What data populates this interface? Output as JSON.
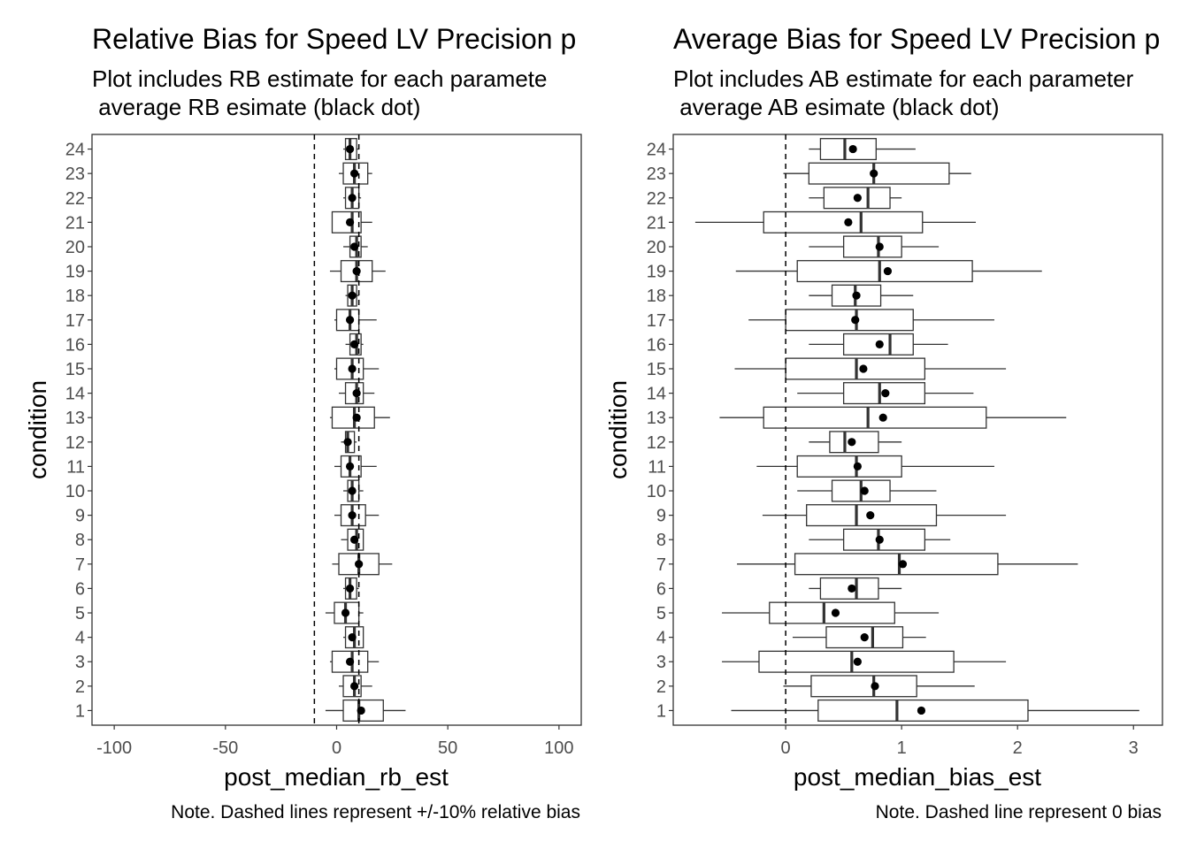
{
  "chart_data": [
    {
      "type": "box",
      "title": "Relative Bias for Speed LV Precision p",
      "subtitle_lines": [
        "Plot includes RB estimate for each paramete",
        " average RB esimate (black dot)"
      ],
      "xlabel": "post_median_rb_est",
      "ylabel": "condition",
      "caption": "Note. Dashed lines represent +/-10% relative bias",
      "xlim": [
        -110,
        110
      ],
      "xticks": [
        -100,
        -50,
        0,
        50,
        100
      ],
      "xtick_labels": [
        "-100",
        "-50",
        "0",
        "50",
        "100"
      ],
      "reference_lines": [
        -10,
        10
      ],
      "categories": [
        "1",
        "2",
        "3",
        "4",
        "5",
        "6",
        "7",
        "8",
        "9",
        "10",
        "11",
        "12",
        "13",
        "14",
        "15",
        "16",
        "17",
        "18",
        "19",
        "20",
        "21",
        "22",
        "23",
        "24"
      ],
      "boxes": [
        {
          "lo": -5,
          "q1": 3,
          "med": 10,
          "q3": 21,
          "hi": 31,
          "mean": 11
        },
        {
          "lo": 1,
          "q1": 3,
          "med": 8,
          "q3": 11,
          "hi": 16,
          "mean": 8
        },
        {
          "lo": -3,
          "q1": -2,
          "med": 7,
          "q3": 14,
          "hi": 19,
          "mean": 6
        },
        {
          "lo": 3,
          "q1": 4,
          "med": 8,
          "q3": 12,
          "hi": 12,
          "mean": 7
        },
        {
          "lo": -5,
          "q1": -1,
          "med": 4,
          "q3": 10,
          "hi": 12,
          "mean": 4
        },
        {
          "lo": 3,
          "q1": 4,
          "med": 6,
          "q3": 9,
          "hi": 10,
          "mean": 6
        },
        {
          "lo": -2,
          "q1": 1,
          "med": 10,
          "q3": 19,
          "hi": 25,
          "mean": 10
        },
        {
          "lo": 2,
          "q1": 5,
          "med": 9,
          "q3": 12,
          "hi": 12,
          "mean": 8
        },
        {
          "lo": -1,
          "q1": 2,
          "med": 7,
          "q3": 13,
          "hi": 19,
          "mean": 7
        },
        {
          "lo": 3,
          "q1": 5,
          "med": 7,
          "q3": 10,
          "hi": 12,
          "mean": 7
        },
        {
          "lo": -1,
          "q1": 2,
          "med": 6,
          "q3": 11,
          "hi": 18,
          "mean": 6
        },
        {
          "lo": 2,
          "q1": 4,
          "med": 5,
          "q3": 8,
          "hi": 9,
          "mean": 5
        },
        {
          "lo": -3,
          "q1": -2,
          "med": 8,
          "q3": 17,
          "hi": 24,
          "mean": 9
        },
        {
          "lo": 1,
          "q1": 4,
          "med": 9,
          "q3": 12,
          "hi": 17,
          "mean": 9
        },
        {
          "lo": -1,
          "q1": 0,
          "med": 7,
          "q3": 12,
          "hi": 19,
          "mean": 7
        },
        {
          "lo": 4,
          "q1": 6,
          "med": 9,
          "q3": 11,
          "hi": 12,
          "mean": 8
        },
        {
          "lo": -1,
          "q1": 0,
          "med": 6,
          "q3": 10,
          "hi": 18,
          "mean": 6
        },
        {
          "lo": 4,
          "q1": 5,
          "med": 7,
          "q3": 9,
          "hi": 10,
          "mean": 7
        },
        {
          "lo": -3,
          "q1": 2,
          "med": 9,
          "q3": 16,
          "hi": 22,
          "mean": 9
        },
        {
          "lo": 3,
          "q1": 6,
          "med": 9,
          "q3": 11,
          "hi": 14,
          "mean": 8
        },
        {
          "lo": -2,
          "q1": -2,
          "med": 7,
          "q3": 11,
          "hi": 16,
          "mean": 6
        },
        {
          "lo": 3,
          "q1": 4,
          "med": 7,
          "q3": 10,
          "hi": 11,
          "mean": 7
        },
        {
          "lo": 1,
          "q1": 3,
          "med": 8,
          "q3": 14,
          "hi": 16,
          "mean": 8
        },
        {
          "lo": 3,
          "q1": 4,
          "med": 6,
          "q3": 9,
          "hi": 10,
          "mean": 6
        }
      ],
      "grid": false
    },
    {
      "type": "box",
      "title": "Average Bias for Speed LV Precision p",
      "subtitle_lines": [
        "Plot includes AB estimate for each parameter",
        " average AB esimate (black dot)"
      ],
      "xlabel": "post_median_bias_est",
      "ylabel": "condition",
      "caption": "Note. Dashed line represent 0 bias",
      "xlim": [
        -0.97,
        3.25
      ],
      "xticks": [
        0,
        1,
        2,
        3
      ],
      "xtick_labels": [
        "0",
        "1",
        "2",
        "3"
      ],
      "reference_lines": [
        0
      ],
      "categories": [
        "1",
        "2",
        "3",
        "4",
        "5",
        "6",
        "7",
        "8",
        "9",
        "10",
        "11",
        "12",
        "13",
        "14",
        "15",
        "16",
        "17",
        "18",
        "19",
        "20",
        "21",
        "22",
        "23",
        "24"
      ],
      "boxes": [
        {
          "lo": -0.47,
          "q1": 0.28,
          "med": 0.96,
          "q3": 2.09,
          "hi": 3.05,
          "mean": 1.17
        },
        {
          "lo": -0.02,
          "q1": 0.22,
          "med": 0.76,
          "q3": 1.13,
          "hi": 1.63,
          "mean": 0.77
        },
        {
          "lo": -0.55,
          "q1": -0.23,
          "med": 0.57,
          "q3": 1.45,
          "hi": 1.9,
          "mean": 0.62
        },
        {
          "lo": 0.06,
          "q1": 0.35,
          "med": 0.75,
          "q3": 1.01,
          "hi": 1.21,
          "mean": 0.68
        },
        {
          "lo": -0.55,
          "q1": -0.14,
          "med": 0.33,
          "q3": 0.94,
          "hi": 1.32,
          "mean": 0.43
        },
        {
          "lo": 0.2,
          "q1": 0.3,
          "med": 0.61,
          "q3": 0.8,
          "hi": 1.0,
          "mean": 0.57
        },
        {
          "lo": -0.42,
          "q1": 0.08,
          "med": 0.98,
          "q3": 1.83,
          "hi": 2.52,
          "mean": 1.01
        },
        {
          "lo": 0.2,
          "q1": 0.5,
          "med": 0.8,
          "q3": 1.2,
          "hi": 1.42,
          "mean": 0.81
        },
        {
          "lo": -0.2,
          "q1": 0.18,
          "med": 0.61,
          "q3": 1.3,
          "hi": 1.9,
          "mean": 0.73
        },
        {
          "lo": 0.1,
          "q1": 0.4,
          "med": 0.65,
          "q3": 0.9,
          "hi": 1.3,
          "mean": 0.68
        },
        {
          "lo": -0.25,
          "q1": 0.1,
          "med": 0.61,
          "q3": 1.0,
          "hi": 1.8,
          "mean": 0.62
        },
        {
          "lo": 0.2,
          "q1": 0.38,
          "med": 0.51,
          "q3": 0.8,
          "hi": 1.0,
          "mean": 0.57
        },
        {
          "lo": -0.57,
          "q1": -0.19,
          "med": 0.71,
          "q3": 1.73,
          "hi": 2.42,
          "mean": 0.84
        },
        {
          "lo": 0.1,
          "q1": 0.5,
          "med": 0.81,
          "q3": 1.2,
          "hi": 1.62,
          "mean": 0.86
        },
        {
          "lo": -0.44,
          "q1": 0.0,
          "med": 0.61,
          "q3": 1.2,
          "hi": 1.9,
          "mean": 0.67
        },
        {
          "lo": 0.2,
          "q1": 0.5,
          "med": 0.9,
          "q3": 1.1,
          "hi": 1.4,
          "mean": 0.81
        },
        {
          "lo": -0.32,
          "q1": 0.0,
          "med": 0.61,
          "q3": 1.1,
          "hi": 1.8,
          "mean": 0.6
        },
        {
          "lo": 0.2,
          "q1": 0.4,
          "med": 0.6,
          "q3": 0.82,
          "hi": 1.1,
          "mean": 0.61
        },
        {
          "lo": -0.43,
          "q1": 0.1,
          "med": 0.81,
          "q3": 1.61,
          "hi": 2.21,
          "mean": 0.88
        },
        {
          "lo": 0.2,
          "q1": 0.5,
          "med": 0.8,
          "q3": 1.0,
          "hi": 1.32,
          "mean": 0.81
        },
        {
          "lo": -0.78,
          "q1": -0.19,
          "med": 0.65,
          "q3": 1.18,
          "hi": 1.64,
          "mean": 0.54
        },
        {
          "lo": 0.2,
          "q1": 0.33,
          "med": 0.71,
          "q3": 0.9,
          "hi": 1.0,
          "mean": 0.62
        },
        {
          "lo": -0.02,
          "q1": 0.2,
          "med": 0.76,
          "q3": 1.41,
          "hi": 1.6,
          "mean": 0.76
        },
        {
          "lo": 0.2,
          "q1": 0.3,
          "med": 0.51,
          "q3": 0.78,
          "hi": 1.12,
          "mean": 0.58
        }
      ],
      "grid": false
    }
  ]
}
